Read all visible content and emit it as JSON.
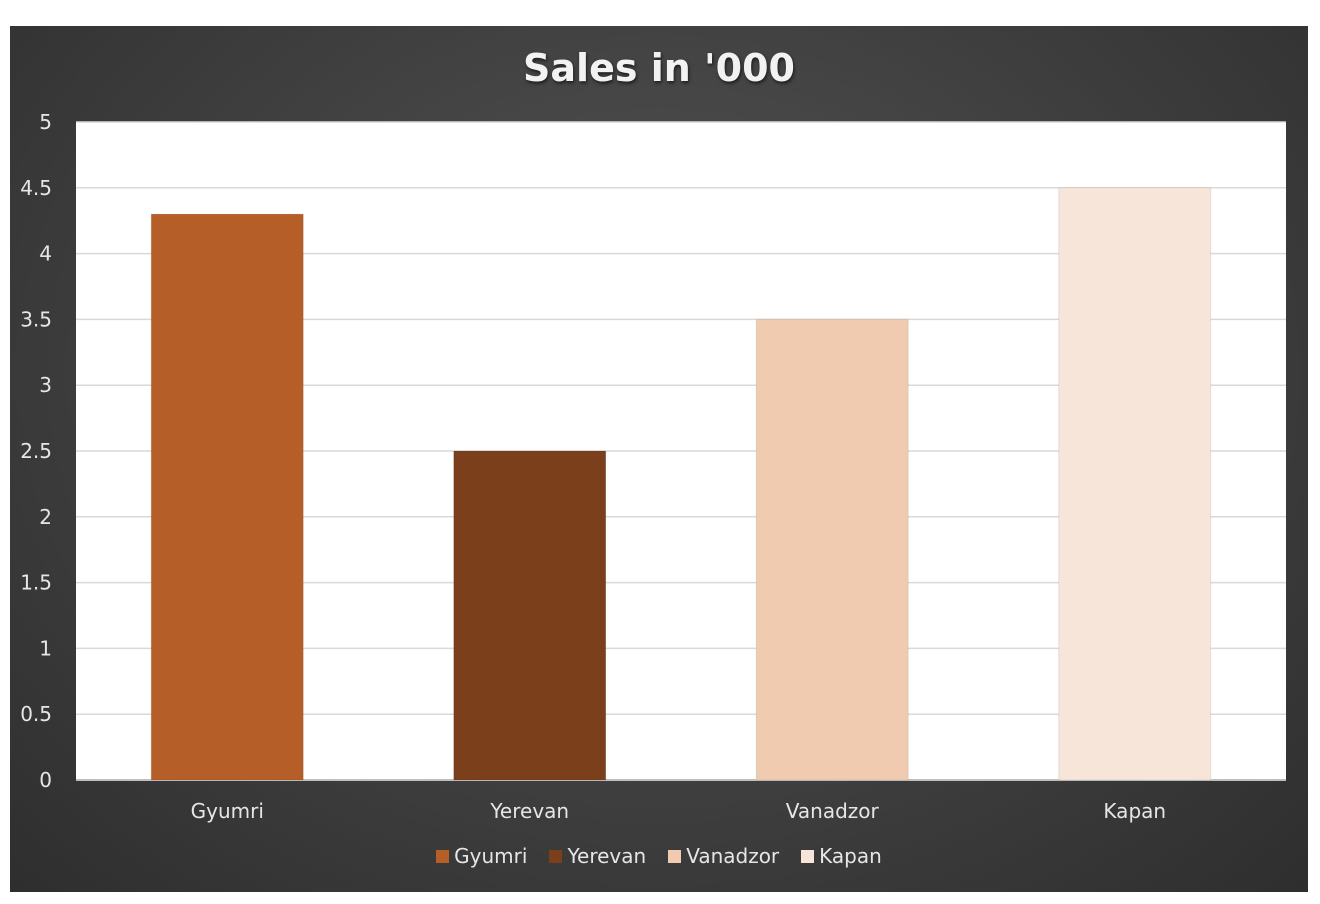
{
  "chart_data": {
    "type": "bar",
    "title": "Sales in '000",
    "categories": [
      "Gyumri",
      "Yerevan",
      "Vanadzor",
      "Kapan"
    ],
    "values": [
      4.3,
      2.5,
      3.5,
      4.5
    ],
    "colors": [
      "#b55e28",
      "#7b3f1b",
      "#f0cbb0",
      "#f7e5d9"
    ],
    "ylim": [
      0,
      5
    ],
    "yticks": [
      "0",
      "0.5",
      "1",
      "1.5",
      "2",
      "2.5",
      "3",
      "3.5",
      "4",
      "4.5",
      "5"
    ],
    "xlabel": "",
    "ylabel": "",
    "grid": true,
    "legend": {
      "position": "bottom",
      "entries": [
        "Gyumri",
        "Yerevan",
        "Vanadzor",
        "Kapan"
      ]
    },
    "plot_background": "#ffffff",
    "chart_background": "#404040"
  }
}
